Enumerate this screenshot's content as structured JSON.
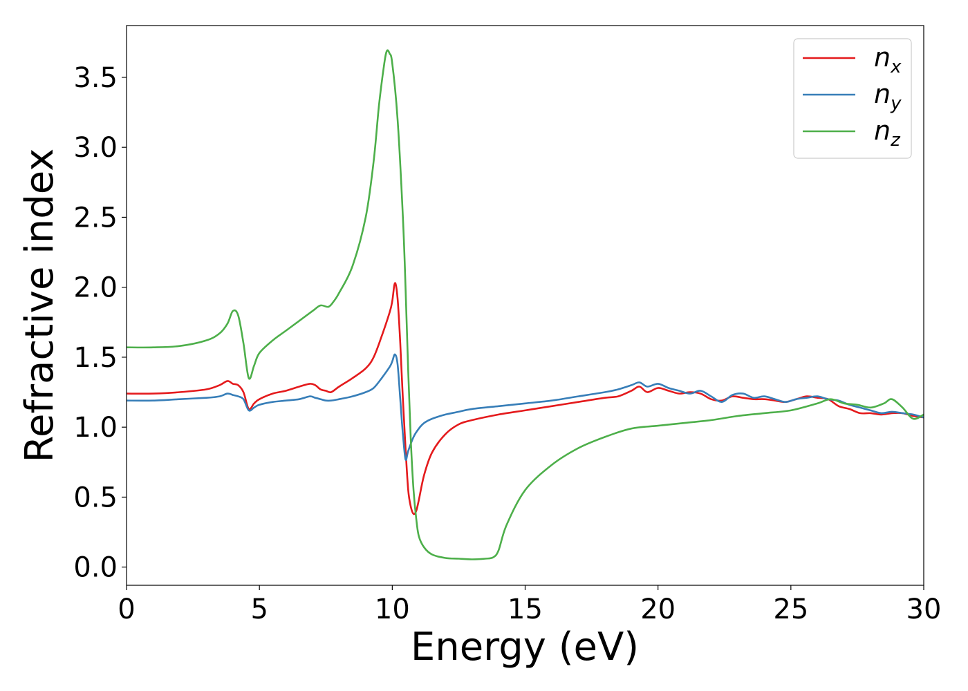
{
  "chart_data": {
    "type": "line",
    "title": "",
    "xlabel": "Energy (eV)",
    "ylabel": "Refractive index",
    "xlim": [
      0,
      30
    ],
    "ylim": [
      -0.13,
      3.87
    ],
    "x_ticks": [
      0,
      5,
      10,
      15,
      20,
      25,
      30
    ],
    "x_tick_labels": [
      "0",
      "5",
      "10",
      "15",
      "20",
      "25",
      "30"
    ],
    "y_ticks": [
      0.0,
      0.5,
      1.0,
      1.5,
      2.0,
      2.5,
      3.0,
      3.5
    ],
    "y_tick_labels": [
      "0.0",
      "0.5",
      "1.0",
      "1.5",
      "2.0",
      "2.5",
      "3.0",
      "3.5"
    ],
    "grid": false,
    "legend": {
      "position": "top-right",
      "entries": [
        {
          "base": "n",
          "sub": "x",
          "color": "#e41a1c"
        },
        {
          "base": "n",
          "sub": "y",
          "color": "#377eb8"
        },
        {
          "base": "n",
          "sub": "z",
          "color": "#4daf4a"
        }
      ]
    },
    "series": [
      {
        "name": "n_x",
        "color": "#e41a1c",
        "x": [
          0,
          1,
          2,
          3,
          3.5,
          3.8,
          4.0,
          4.2,
          4.4,
          4.6,
          4.8,
          5,
          5.5,
          6,
          6.5,
          6.9,
          7.1,
          7.3,
          7.5,
          7.7,
          8,
          8.5,
          9,
          9.3,
          9.6,
          9.9,
          10.0,
          10.1,
          10.2,
          10.3,
          10.4,
          10.5,
          10.6,
          10.7,
          10.8,
          10.9,
          11.0,
          11.2,
          11.5,
          12,
          12.5,
          13,
          14,
          15,
          16,
          17,
          18,
          18.5,
          19,
          19.3,
          19.6,
          20,
          20.4,
          20.8,
          21.2,
          21.6,
          22,
          22.4,
          22.8,
          23.2,
          23.6,
          24,
          24.4,
          24.8,
          25.2,
          25.6,
          26,
          26.4,
          26.8,
          27.2,
          27.6,
          28,
          28.4,
          28.8,
          29.2,
          29.6,
          30
        ],
        "y": [
          1.24,
          1.24,
          1.25,
          1.27,
          1.3,
          1.33,
          1.31,
          1.3,
          1.25,
          1.13,
          1.17,
          1.2,
          1.24,
          1.26,
          1.29,
          1.31,
          1.3,
          1.27,
          1.26,
          1.25,
          1.29,
          1.35,
          1.42,
          1.5,
          1.65,
          1.82,
          1.9,
          2.03,
          1.92,
          1.6,
          1.2,
          0.85,
          0.55,
          0.43,
          0.38,
          0.4,
          0.48,
          0.66,
          0.82,
          0.95,
          1.02,
          1.05,
          1.09,
          1.12,
          1.15,
          1.18,
          1.21,
          1.22,
          1.26,
          1.29,
          1.25,
          1.28,
          1.26,
          1.24,
          1.25,
          1.24,
          1.2,
          1.19,
          1.22,
          1.21,
          1.2,
          1.2,
          1.19,
          1.18,
          1.2,
          1.22,
          1.21,
          1.2,
          1.15,
          1.13,
          1.1,
          1.1,
          1.09,
          1.1,
          1.1,
          1.08,
          1.07
        ]
      },
      {
        "name": "n_y",
        "color": "#377eb8",
        "x": [
          0,
          1,
          2,
          3,
          3.5,
          3.8,
          4.0,
          4.2,
          4.4,
          4.6,
          4.8,
          5,
          5.5,
          6,
          6.5,
          6.9,
          7.1,
          7.3,
          7.5,
          7.7,
          8,
          8.5,
          9,
          9.3,
          9.6,
          9.9,
          10.0,
          10.1,
          10.2,
          10.3,
          10.4,
          10.5,
          10.6,
          10.8,
          11.0,
          11.2,
          11.5,
          12,
          12.5,
          13,
          14,
          15,
          16,
          17,
          18,
          18.5,
          19,
          19.3,
          19.6,
          20,
          20.4,
          20.8,
          21.2,
          21.6,
          22,
          22.4,
          22.8,
          23.2,
          23.6,
          24,
          24.4,
          24.8,
          25.2,
          25.6,
          26,
          26.4,
          26.8,
          27.2,
          27.6,
          28,
          28.4,
          28.8,
          29.2,
          29.6,
          30
        ],
        "y": [
          1.19,
          1.19,
          1.2,
          1.21,
          1.22,
          1.24,
          1.23,
          1.22,
          1.2,
          1.12,
          1.14,
          1.16,
          1.18,
          1.19,
          1.2,
          1.22,
          1.21,
          1.2,
          1.19,
          1.19,
          1.2,
          1.22,
          1.25,
          1.28,
          1.35,
          1.43,
          1.47,
          1.52,
          1.45,
          1.2,
          0.95,
          0.77,
          0.83,
          0.93,
          0.99,
          1.03,
          1.06,
          1.09,
          1.11,
          1.13,
          1.15,
          1.17,
          1.19,
          1.22,
          1.25,
          1.27,
          1.3,
          1.32,
          1.29,
          1.31,
          1.28,
          1.26,
          1.24,
          1.26,
          1.22,
          1.18,
          1.23,
          1.24,
          1.21,
          1.22,
          1.2,
          1.18,
          1.2,
          1.21,
          1.22,
          1.2,
          1.19,
          1.16,
          1.14,
          1.12,
          1.1,
          1.11,
          1.1,
          1.09,
          1.07
        ]
      },
      {
        "name": "n_z",
        "color": "#4daf4a",
        "x": [
          0,
          1,
          2,
          3,
          3.5,
          3.8,
          4.0,
          4.2,
          4.4,
          4.6,
          4.8,
          5,
          5.5,
          6,
          6.5,
          7,
          7.3,
          7.6,
          7.8,
          8,
          8.5,
          9,
          9.3,
          9.5,
          9.7,
          9.8,
          9.9,
          10.0,
          10.2,
          10.4,
          10.5,
          10.6,
          10.7,
          10.8,
          10.9,
          11.0,
          11.2,
          11.5,
          12,
          12.5,
          13,
          13.5,
          13.8,
          14,
          14.3,
          15,
          16,
          17,
          18,
          19,
          20,
          21,
          22,
          23,
          24,
          25,
          26,
          26.5,
          27,
          27.5,
          28,
          28.5,
          28.8,
          29.2,
          29.6,
          30
        ],
        "y": [
          1.57,
          1.57,
          1.58,
          1.62,
          1.67,
          1.74,
          1.83,
          1.8,
          1.6,
          1.35,
          1.44,
          1.53,
          1.62,
          1.69,
          1.76,
          1.83,
          1.87,
          1.86,
          1.9,
          1.96,
          2.15,
          2.5,
          2.9,
          3.3,
          3.6,
          3.69,
          3.67,
          3.6,
          3.2,
          2.5,
          2.0,
          1.4,
          0.9,
          0.55,
          0.35,
          0.22,
          0.14,
          0.09,
          0.065,
          0.06,
          0.055,
          0.06,
          0.07,
          0.12,
          0.3,
          0.55,
          0.73,
          0.85,
          0.93,
          0.99,
          1.01,
          1.03,
          1.05,
          1.08,
          1.1,
          1.12,
          1.17,
          1.2,
          1.17,
          1.16,
          1.14,
          1.17,
          1.2,
          1.14,
          1.06,
          1.09
        ]
      }
    ]
  }
}
